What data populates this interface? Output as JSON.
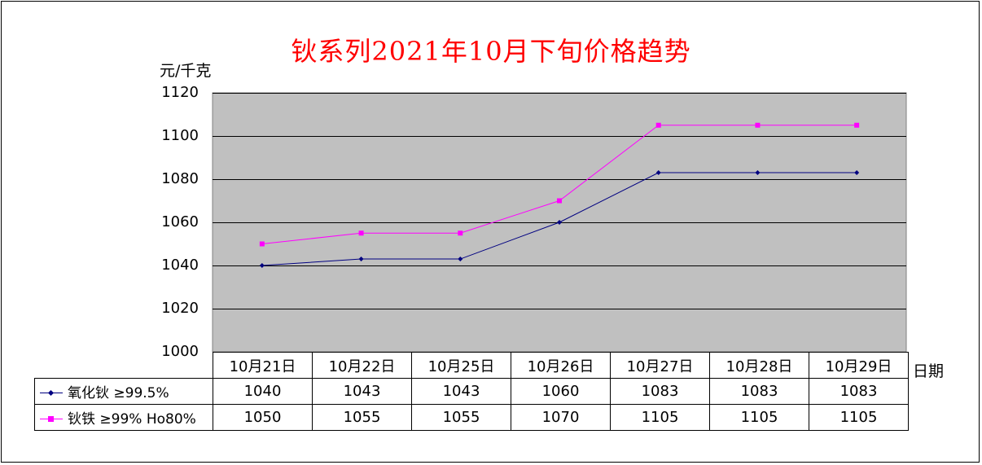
{
  "chart_data": {
    "type": "line",
    "title": "钬系列2021年10月下旬价格趋势",
    "ylabel": "元/千克",
    "xlabel": "日期",
    "categories": [
      "10月21日",
      "10月22日",
      "10月25日",
      "10月26日",
      "10月27日",
      "10月28日",
      "10月29日"
    ],
    "ylim": [
      1000,
      1120
    ],
    "yticks": [
      "1120",
      "1100",
      "1080",
      "1060",
      "1040",
      "1020",
      "1000"
    ],
    "grid": true,
    "legend": "data-table",
    "plot_background": "#C0C0C0",
    "series": [
      {
        "name": "氧化钬 ≥99.5%",
        "values": [
          1040,
          1043,
          1043,
          1060,
          1083,
          1083,
          1083
        ],
        "color": "#000080",
        "marker": "diamond"
      },
      {
        "name": "钬铁 ≥99% Ho80%",
        "values": [
          1050,
          1055,
          1055,
          1070,
          1105,
          1105,
          1105
        ],
        "color": "#FF00FF",
        "marker": "square"
      }
    ]
  }
}
